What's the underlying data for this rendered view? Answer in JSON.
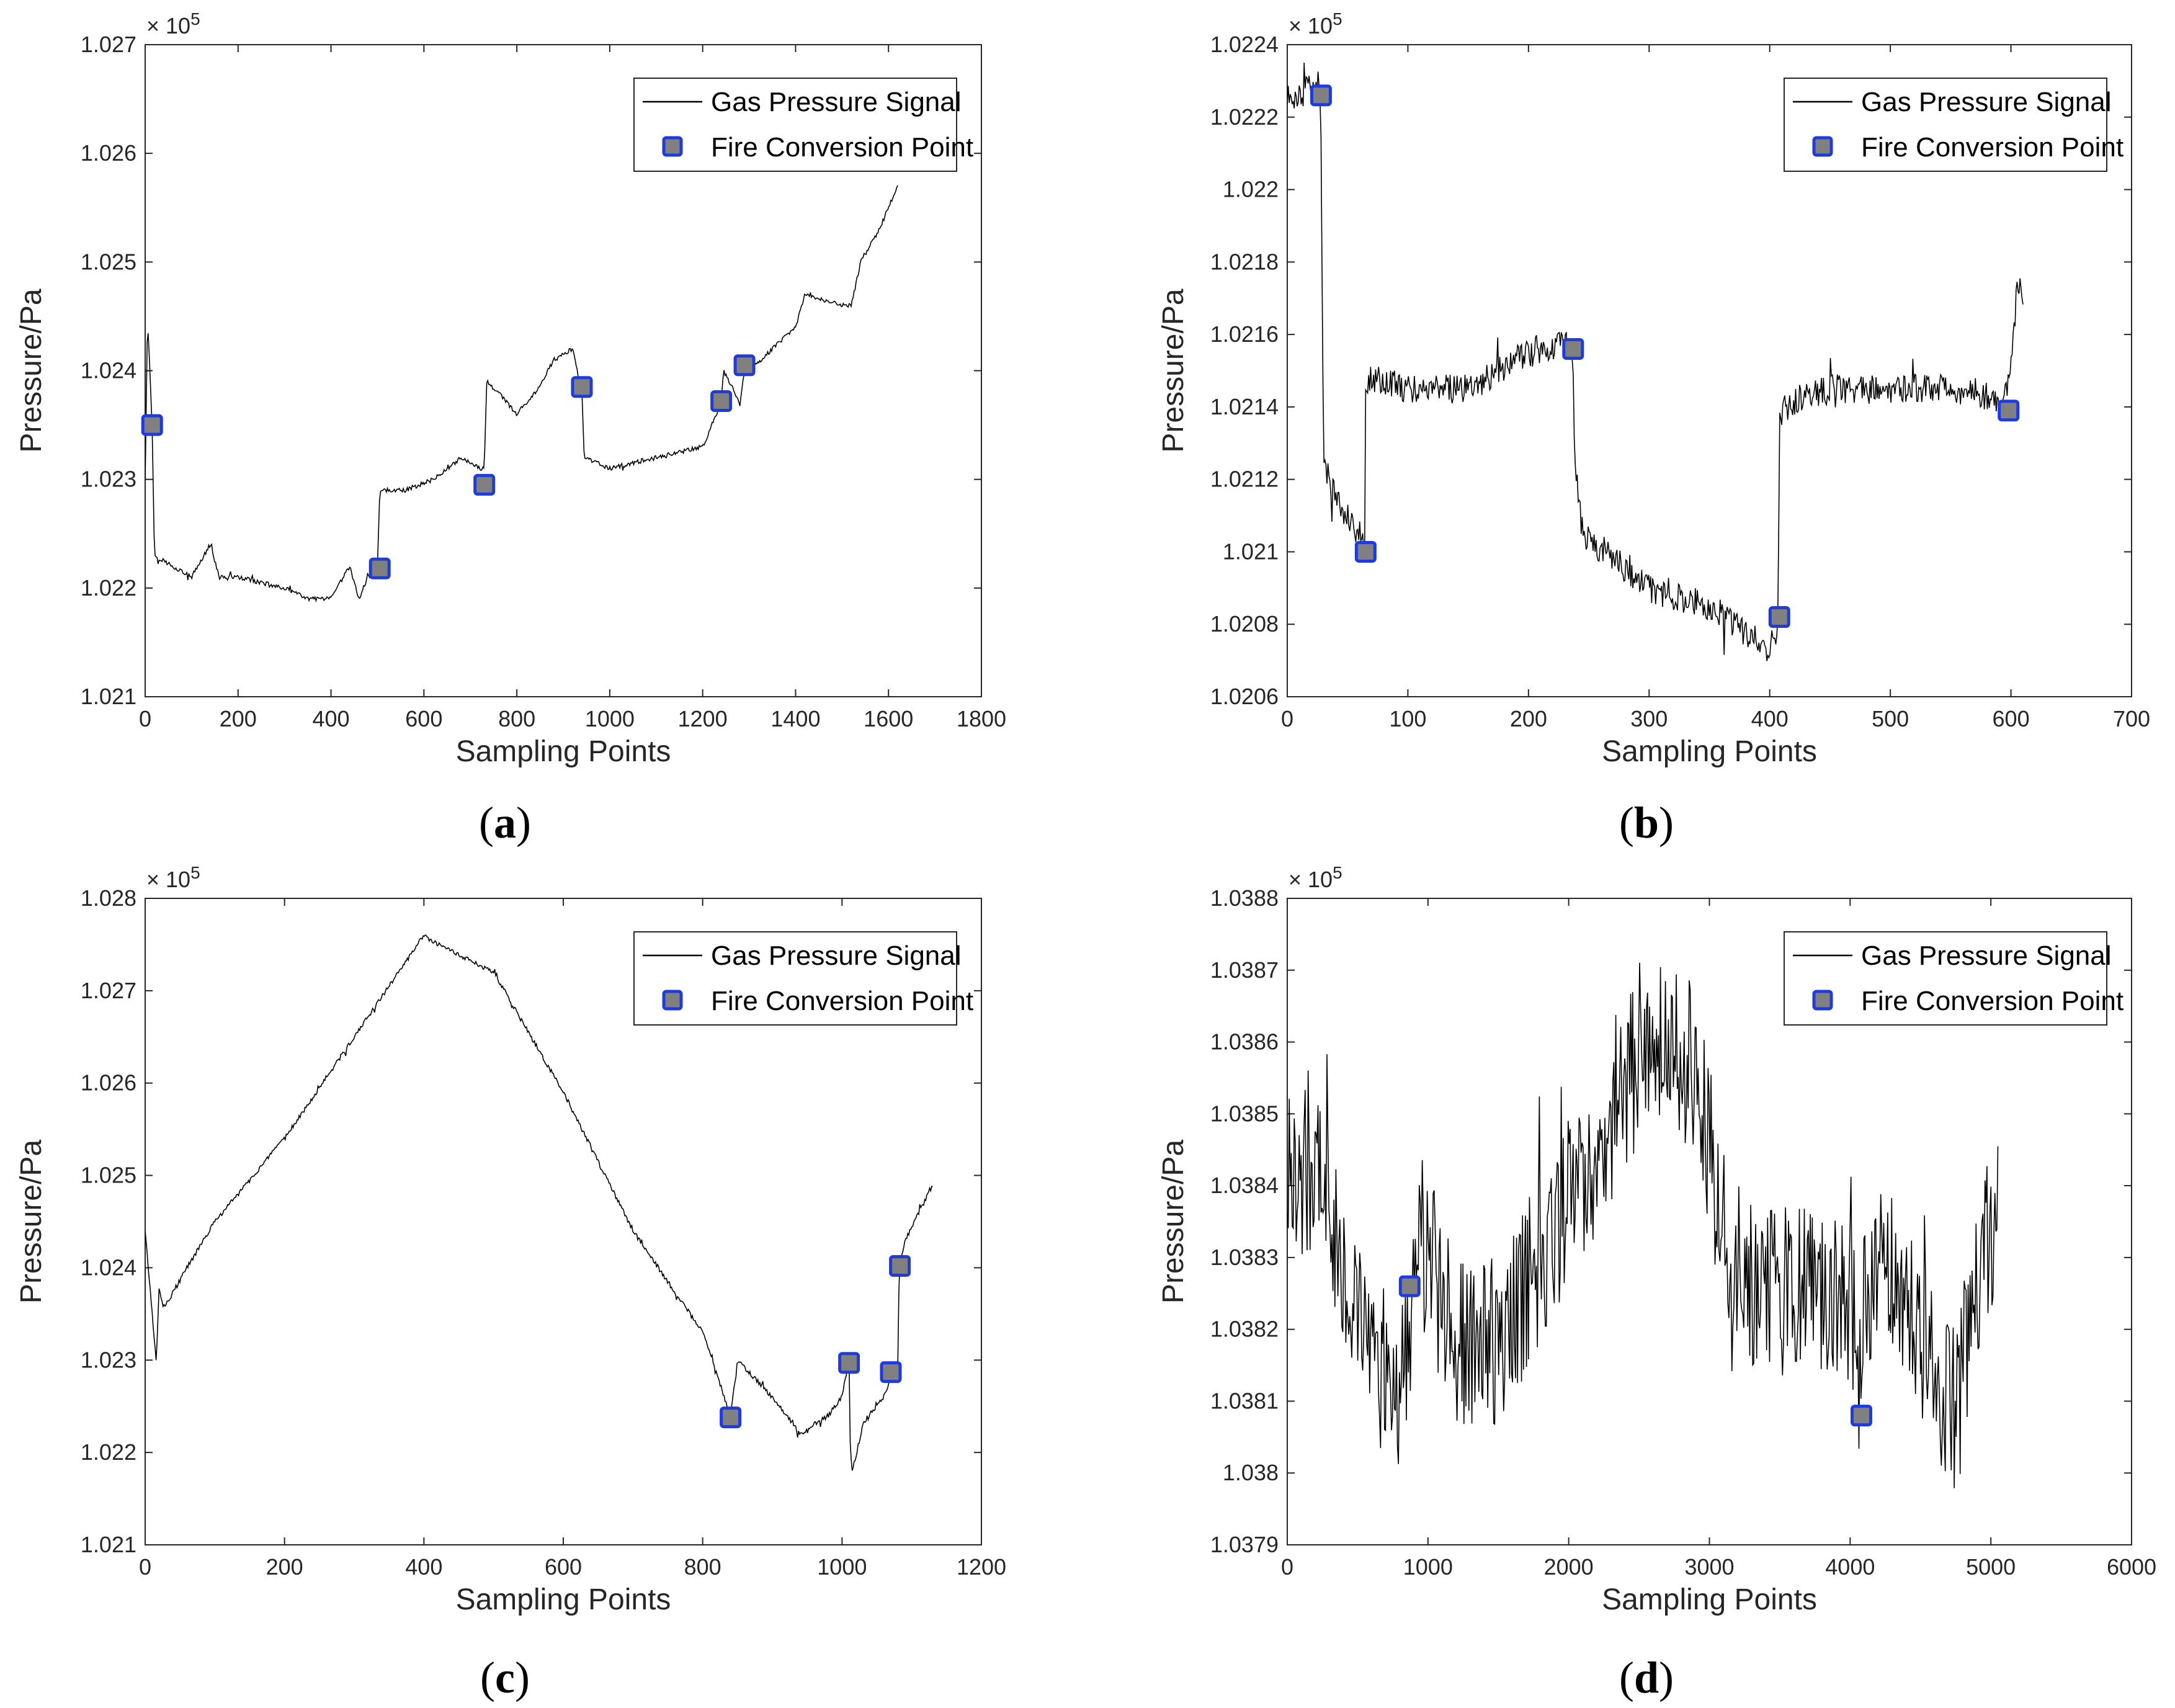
{
  "chart_data": [
    {
      "type": "line",
      "panel": "a",
      "caption_letter": "a",
      "xlabel": "Sampling Points",
      "ylabel": "Pressure/Pa",
      "exponent_label": "× 10",
      "exponent_power": "5",
      "xlim": [
        0,
        1800
      ],
      "ylim": [
        1.021,
        1.027
      ],
      "xticks": [
        0,
        200,
        400,
        600,
        800,
        1000,
        1200,
        1400,
        1600,
        1800
      ],
      "yticks": [
        1.021,
        1.022,
        1.023,
        1.024,
        1.025,
        1.026,
        1.027
      ],
      "ytick_labels": [
        "1.021",
        "1.022",
        "1.023",
        "1.024",
        "1.025",
        "1.026",
        "1.027"
      ],
      "xtick_labels": [
        "0",
        "200",
        "400",
        "600",
        "800",
        "1000",
        "1200",
        "1400",
        "1600",
        "1800"
      ],
      "legend": {
        "placement": "top-right",
        "items": [
          "Gas Pressure Signal",
          "Fire Conversion Point"
        ]
      },
      "series": [
        {
          "name": "Gas Pressure Signal",
          "noise": 4e-05,
          "x": [
            0,
            5,
            10,
            15,
            20,
            60,
            100,
            140,
            160,
            200,
            300,
            350,
            400,
            440,
            460,
            480,
            500,
            505,
            560,
            620,
            680,
            720,
            730,
            735,
            760,
            800,
            840,
            880,
            920,
            940,
            945,
            1000,
            1100,
            1200,
            1230,
            1240,
            1245,
            1280,
            1290,
            1300,
            1350,
            1400,
            1420,
            1500,
            1520,
            1540,
            1580,
            1620
          ],
          "y": [
            1.023,
            1.0245,
            1.024,
            1.0235,
            1.0223,
            1.0222,
            1.0221,
            1.0224,
            1.0221,
            1.0221,
            1.022,
            1.0219,
            1.0219,
            1.0222,
            1.0219,
            1.0221,
            1.0222,
            1.0229,
            1.0229,
            1.023,
            1.0232,
            1.0231,
            1.0231,
            1.0239,
            1.0238,
            1.0236,
            1.0238,
            1.0241,
            1.0242,
            1.0238,
            1.0232,
            1.0231,
            1.0232,
            1.0233,
            1.0236,
            1.0237,
            1.024,
            1.0237,
            1.024,
            1.024,
            1.0242,
            1.0244,
            1.0247,
            1.0246,
            1.0246,
            1.025,
            1.0253,
            1.0257
          ]
        },
        {
          "name": "Fire Conversion Point",
          "x": [
            15,
            505,
            730,
            940,
            1240,
            1290
          ],
          "y": [
            1.0235,
            1.02218,
            1.02295,
            1.02385,
            1.02372,
            1.02405
          ]
        }
      ]
    },
    {
      "type": "line",
      "panel": "b",
      "caption_letter": "b",
      "xlabel": "Sampling Points",
      "ylabel": "Pressure/Pa",
      "exponent_label": "× 10",
      "exponent_power": "5",
      "xlim": [
        0,
        700
      ],
      "ylim": [
        1.0206,
        1.0224
      ],
      "xticks": [
        0,
        100,
        200,
        300,
        400,
        500,
        600,
        700
      ],
      "yticks": [
        1.0206,
        1.0208,
        1.021,
        1.0212,
        1.0214,
        1.0216,
        1.0218,
        1.022,
        1.0222,
        1.0224
      ],
      "ytick_labels": [
        "1.0206",
        "1.0208",
        "1.021",
        "1.0212",
        "1.0214",
        "1.0216",
        "1.0218",
        "1.022",
        "1.0222",
        "1.0224"
      ],
      "xtick_labels": [
        "0",
        "100",
        "200",
        "300",
        "400",
        "500",
        "600",
        "700"
      ],
      "legend": {
        "placement": "top-right",
        "items": [
          "Gas Pressure Signal",
          "Fire Conversion Point"
        ]
      },
      "series": [
        {
          "name": "Gas Pressure Signal",
          "noise": 8e-05,
          "x": [
            0,
            20,
            27,
            28,
            30,
            35,
            40,
            50,
            60,
            64,
            65,
            70,
            100,
            150,
            200,
            230,
            237,
            238,
            245,
            300,
            350,
            400,
            407,
            408,
            412,
            450,
            500,
            550,
            595,
            600,
            605,
            610
          ],
          "y": [
            1.02225,
            1.02228,
            1.0223,
            1.02218,
            1.02125,
            1.0212,
            1.02115,
            1.0211,
            1.02105,
            1.021,
            1.02145,
            1.02148,
            1.02145,
            1.02145,
            1.02155,
            1.02158,
            1.02156,
            1.02125,
            1.02105,
            1.0209,
            1.02085,
            1.02073,
            1.0208,
            1.02138,
            1.0214,
            1.02145,
            1.02145,
            1.02145,
            1.02142,
            1.0215,
            1.02172,
            1.02172
          ]
        },
        {
          "name": "Fire Conversion Point",
          "x": [
            28,
            65,
            237,
            408,
            598
          ],
          "y": [
            1.02226,
            1.021,
            1.02156,
            1.02082,
            1.02139
          ]
        }
      ]
    },
    {
      "type": "line",
      "panel": "c",
      "caption_letter": "c",
      "xlabel": "Sampling Points",
      "ylabel": "Pressure/Pa",
      "exponent_label": "× 10",
      "exponent_power": "5",
      "xlim": [
        0,
        1200
      ],
      "ylim": [
        1.021,
        1.028
      ],
      "xticks": [
        0,
        200,
        400,
        600,
        800,
        1000,
        1200
      ],
      "yticks": [
        1.021,
        1.022,
        1.023,
        1.024,
        1.025,
        1.026,
        1.027,
        1.028
      ],
      "ytick_labels": [
        "1.021",
        "1.022",
        "1.023",
        "1.024",
        "1.025",
        "1.026",
        "1.027",
        "1.028"
      ],
      "xtick_labels": [
        "0",
        "200",
        "400",
        "600",
        "800",
        "1000",
        "1200"
      ],
      "legend": {
        "placement": "top-right",
        "items": [
          "Gas Pressure Signal",
          "Fire Conversion Point"
        ]
      },
      "series": [
        {
          "name": "Gas Pressure Signal",
          "noise": 5e-05,
          "x": [
            0,
            8,
            12,
            16,
            20,
            25,
            30,
            60,
            100,
            200,
            300,
            400,
            420,
            500,
            600,
            700,
            800,
            840,
            850,
            900,
            940,
            980,
            1000,
            1010,
            1012,
            1015,
            1030,
            1060,
            1070,
            1080,
            1082,
            1090,
            1130
          ],
          "y": [
            1.0244,
            1.0237,
            1.0233,
            1.023,
            1.0238,
            1.0236,
            1.0236,
            1.024,
            1.0245,
            1.0254,
            1.0265,
            1.0276,
            1.0275,
            1.0272,
            1.0259,
            1.0244,
            1.0233,
            1.0224,
            1.023,
            1.0226,
            1.0222,
            1.0224,
            1.0226,
            1.023,
            1.022,
            1.0218,
            1.0223,
            1.0226,
            1.0228,
            1.0229,
            1.024,
            1.0243,
            1.0249
          ]
        },
        {
          "name": "Fire Conversion Point",
          "x": [
            840,
            1010,
            1070,
            1083
          ],
          "y": [
            1.02238,
            1.02297,
            1.02287,
            1.02402
          ]
        }
      ]
    },
    {
      "type": "line",
      "panel": "d",
      "caption_letter": "d",
      "xlabel": "Sampling Points",
      "ylabel": "Pressure/Pa",
      "exponent_label": "× 10",
      "exponent_power": "5",
      "xlim": [
        0,
        6000
      ],
      "ylim": [
        1.0379,
        1.0388
      ],
      "xticks": [
        0,
        1000,
        2000,
        3000,
        4000,
        5000,
        6000
      ],
      "yticks": [
        1.0379,
        1.038,
        1.0381,
        1.0382,
        1.0383,
        1.0384,
        1.0385,
        1.0386,
        1.0387,
        1.0388
      ],
      "ytick_labels": [
        "1.0379",
        "1.038",
        "1.0381",
        "1.0382",
        "1.0383",
        "1.0384",
        "1.0385",
        "1.0386",
        "1.0387",
        "1.0388"
      ],
      "xtick_labels": [
        "0",
        "1000",
        "2000",
        "3000",
        "4000",
        "5000",
        "6000"
      ],
      "legend": {
        "placement": "top-right",
        "items": [
          "Gas Pressure Signal",
          "Fire Conversion Point"
        ]
      },
      "series": [
        {
          "name": "Gas Pressure Signal",
          "noise": 0.00024,
          "x": [
            0,
            200,
            400,
            600,
            800,
            870,
            900,
            1000,
            1200,
            1500,
            1800,
            2200,
            2500,
            2700,
            2900,
            3100,
            3300,
            3500,
            3800,
            4000,
            4070,
            4080,
            4100,
            4200,
            4400,
            4600,
            4750,
            4900,
            5050
          ],
          "y": [
            1.03838,
            1.03845,
            1.0383,
            1.03815,
            1.03812,
            1.0382,
            1.03835,
            1.0383,
            1.03818,
            1.03818,
            1.0383,
            1.03845,
            1.03858,
            1.03863,
            1.03855,
            1.03835,
            1.03827,
            1.03825,
            1.03825,
            1.03824,
            1.03812,
            1.038,
            1.03825,
            1.0383,
            1.03825,
            1.03815,
            1.03808,
            1.03825,
            1.03838
          ]
        },
        {
          "name": "Fire Conversion Point",
          "x": [
            870,
            4080
          ],
          "y": [
            1.03826,
            1.03808
          ]
        }
      ]
    }
  ]
}
